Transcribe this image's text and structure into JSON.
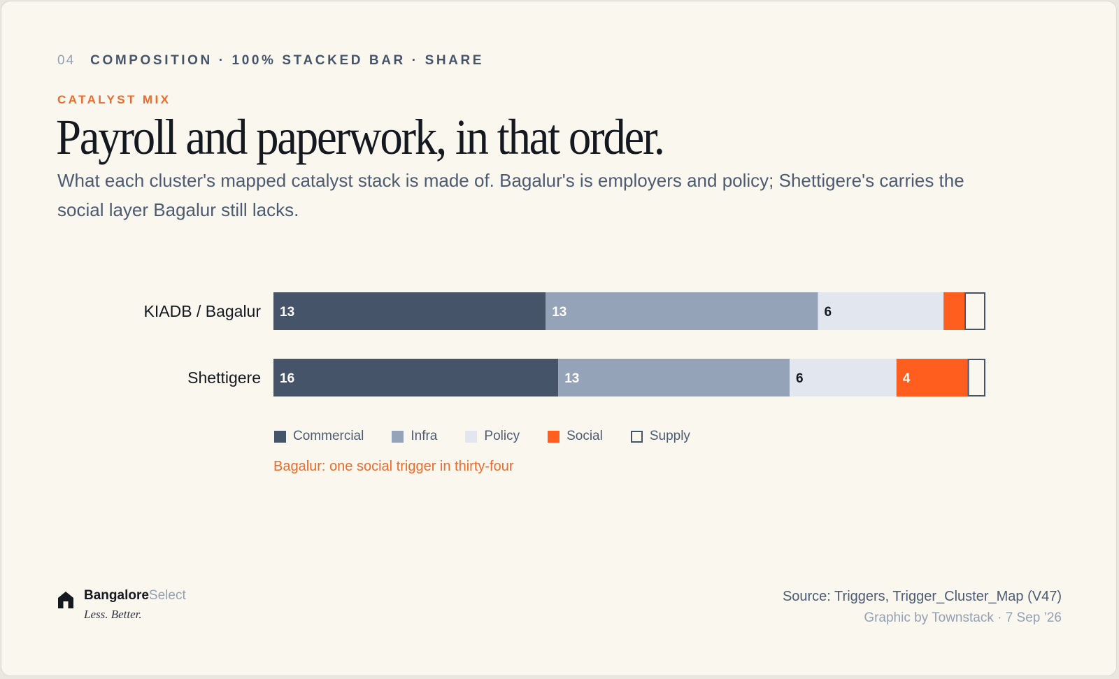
{
  "eyebrow": {
    "number": "04",
    "label": "COMPOSITION · 100% STACKED BAR · SHARE"
  },
  "kicker": "CATALYST MIX",
  "title": "Payroll and paperwork, in that order.",
  "subtitle": "What each cluster's mapped catalyst stack is made of. Bagalur's is employers and policy; Shettigere's carries the social layer Bagalur still lacks.",
  "annotation": "Bagalur: one social trigger in thirty-four",
  "brand": {
    "name_bold": "Bangalore",
    "name_light": "Select",
    "tagline": "Less. Better."
  },
  "footer": {
    "source": "Source: Triggers, Trigger_Cluster_Map (V47)",
    "credit": "Graphic by Townstack · 7 Sep ’26"
  },
  "colors": {
    "commercial": "#46546a",
    "infra": "#95a3b8",
    "policy": "#e2e7ef",
    "social": "#ff5e1f",
    "supply": "#faf7ef",
    "supply_border": "#46546a",
    "accent": "#ef6a2b"
  },
  "chart_data": {
    "type": "bar",
    "orientation": "horizontal",
    "stacking": "100%",
    "categories": [
      "KIADB / Bagalur",
      "Shettigere"
    ],
    "series": [
      {
        "name": "Commercial",
        "color": "#46546a",
        "values": [
          13,
          16
        ],
        "labels": [
          "13",
          "16"
        ],
        "label_color": "#ffffff"
      },
      {
        "name": "Infra",
        "color": "#95a3b8",
        "values": [
          13,
          13
        ],
        "labels": [
          "13",
          "13"
        ],
        "label_color": "#ffffff"
      },
      {
        "name": "Policy",
        "color": "#e2e7ef",
        "values": [
          6,
          6
        ],
        "labels": [
          "6",
          "6"
        ],
        "label_color": "#14181f"
      },
      {
        "name": "Social",
        "color": "#ff5e1f",
        "values": [
          1,
          4
        ],
        "labels": [
          "",
          "4"
        ],
        "label_color": "#ffffff"
      },
      {
        "name": "Supply",
        "color": "#faf7ef",
        "stroke": "#46546a",
        "values": [
          1,
          1
        ],
        "labels": [
          "",
          ""
        ],
        "label_color": "#14181f"
      }
    ],
    "legend_position": "bottom-left",
    "grid": false
  }
}
